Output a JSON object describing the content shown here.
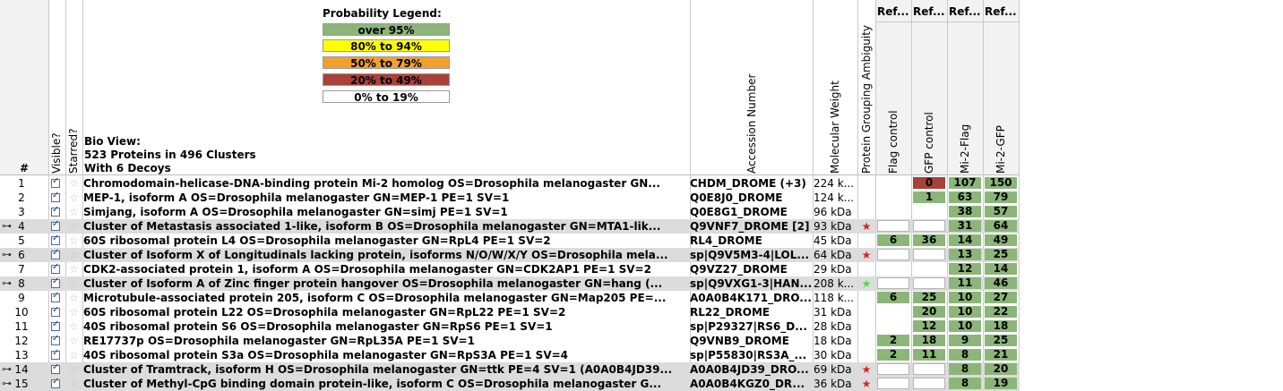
{
  "legend": {
    "title": "Probability Legend:",
    "items": [
      {
        "label": "over 95%",
        "color": "#8cb57a"
      },
      {
        "label": "80% to 94%",
        "color": "#ffff00"
      },
      {
        "label": "50% to 79%",
        "color": "#f0a030"
      },
      {
        "label": "20% to  49%",
        "color": "#a8413a"
      },
      {
        "label": "0% to 19%",
        "color": "#ffffff"
      }
    ]
  },
  "headers": {
    "num": "#",
    "visible": "Visible?",
    "starred": "Starred?",
    "bioview_1": "Bio View:",
    "bioview_2": "523 Proteins in 496 Clusters",
    "bioview_3": "With 6 Decoys",
    "accession": "Accession Number",
    "mw": "Molecular Weight",
    "pga": "Protein Grouping Ambiguity",
    "ref_top": [
      "Ref...",
      "Ref...",
      "Ref...",
      "Ref..."
    ],
    "samples": [
      "Flag control",
      "GFP control",
      "Mi-2-Flag",
      "Mi-2-GFP"
    ]
  },
  "rows": [
    {
      "num": "1",
      "cluster": false,
      "starred": false,
      "desc": "Chromodomain-helicase-DNA-binding protein Mi-2 homolog OS=Drosophila melanogaster GN...",
      "acc": "CHDM_DROME (+3)",
      "mw": "224 k...",
      "pga": "",
      "c": [
        [
          "",
          ""
        ],
        [
          "0",
          "r"
        ],
        [
          "107",
          "g"
        ],
        [
          "150",
          "g"
        ]
      ]
    },
    {
      "num": "2",
      "cluster": false,
      "starred": false,
      "desc": "MEP-1, isoform A OS=Drosophila melanogaster GN=MEP-1 PE=1 SV=1",
      "acc": "Q0E8J0_DROME",
      "mw": "124 k...",
      "pga": "",
      "c": [
        [
          "",
          ""
        ],
        [
          "1",
          "g"
        ],
        [
          "63",
          "g"
        ],
        [
          "79",
          "g"
        ]
      ]
    },
    {
      "num": "3",
      "cluster": false,
      "starred": false,
      "desc": "Simjang, isoform A OS=Drosophila melanogaster GN=simj PE=1 SV=1",
      "acc": "Q0E8G1_DROME",
      "mw": "96 kDa",
      "pga": "",
      "c": [
        [
          "",
          ""
        ],
        [
          "",
          ""
        ],
        [
          "38",
          "g"
        ],
        [
          "57",
          "g"
        ]
      ]
    },
    {
      "num": "4",
      "cluster": true,
      "starred": false,
      "desc": "Cluster of Metastasis associated 1-like, isoform B OS=Drosophila melanogaster GN=MTA1-lik...",
      "acc": "Q9VNF7_DROME [2]",
      "mw": "93 kDa",
      "pga": "red",
      "c": [
        [
          "",
          "e"
        ],
        [
          "",
          "e"
        ],
        [
          "31",
          "g"
        ],
        [
          "64",
          "g"
        ]
      ]
    },
    {
      "num": "5",
      "cluster": false,
      "starred": false,
      "desc": "60S ribosomal protein L4 OS=Drosophila melanogaster GN=RpL4 PE=1 SV=2",
      "acc": "RL4_DROME",
      "mw": "45 kDa",
      "pga": "",
      "c": [
        [
          "6",
          "g"
        ],
        [
          "36",
          "g"
        ],
        [
          "14",
          "g"
        ],
        [
          "49",
          "g"
        ]
      ]
    },
    {
      "num": "6",
      "cluster": true,
      "starred": false,
      "desc": "Cluster of Isoform X of Longitudinals lacking protein, isoforms N/O/W/X/Y OS=Drosophila mela...",
      "acc": "sp|Q9V5M3-4|LOL...",
      "mw": "64 kDa",
      "pga": "red",
      "c": [
        [
          "",
          "e"
        ],
        [
          "",
          "e"
        ],
        [
          "13",
          "g"
        ],
        [
          "25",
          "g"
        ]
      ]
    },
    {
      "num": "7",
      "cluster": false,
      "starred": false,
      "desc": "CDK2-associated protein 1, isoform A OS=Drosophila melanogaster GN=CDK2AP1 PE=1 SV=2",
      "acc": "Q9VZ27_DROME",
      "mw": "29 kDa",
      "pga": "",
      "c": [
        [
          "",
          ""
        ],
        [
          "",
          ""
        ],
        [
          "12",
          "g"
        ],
        [
          "14",
          "g"
        ]
      ]
    },
    {
      "num": "8",
      "cluster": true,
      "starred": false,
      "desc": "Cluster of Isoform A of Zinc finger protein hangover OS=Drosophila melanogaster GN=hang (...",
      "acc": "sp|Q9VXG1-3|HAN...",
      "mw": "208 k...",
      "pga": "green",
      "c": [
        [
          "",
          "e"
        ],
        [
          "",
          "e"
        ],
        [
          "11",
          "g"
        ],
        [
          "46",
          "g"
        ]
      ]
    },
    {
      "num": "9",
      "cluster": false,
      "starred": false,
      "desc": "Microtubule-associated protein 205, isoform C OS=Drosophila melanogaster GN=Map205 PE=...",
      "acc": "A0A0B4K171_DRO...",
      "mw": "118 k...",
      "pga": "",
      "c": [
        [
          "6",
          "g"
        ],
        [
          "25",
          "g"
        ],
        [
          "10",
          "g"
        ],
        [
          "27",
          "g"
        ]
      ]
    },
    {
      "num": "10",
      "cluster": false,
      "starred": false,
      "desc": "60S ribosomal protein L22 OS=Drosophila melanogaster GN=RpL22 PE=1 SV=2",
      "acc": "RL22_DROME",
      "mw": "31 kDa",
      "pga": "",
      "c": [
        [
          "",
          ""
        ],
        [
          "20",
          "g"
        ],
        [
          "10",
          "g"
        ],
        [
          "22",
          "g"
        ]
      ]
    },
    {
      "num": "11",
      "cluster": false,
      "starred": false,
      "desc": "40S ribosomal protein S6 OS=Drosophila melanogaster GN=RpS6 PE=1 SV=1",
      "acc": "sp|P29327|RS6_D...",
      "mw": "28 kDa",
      "pga": "",
      "c": [
        [
          "",
          ""
        ],
        [
          "12",
          "g"
        ],
        [
          "10",
          "g"
        ],
        [
          "18",
          "g"
        ]
      ]
    },
    {
      "num": "12",
      "cluster": false,
      "starred": false,
      "desc": "RE17737p OS=Drosophila melanogaster GN=RpL35A PE=1 SV=1",
      "acc": "Q9VNB9_DROME",
      "mw": "18 kDa",
      "pga": "",
      "c": [
        [
          "2",
          "g"
        ],
        [
          "18",
          "g"
        ],
        [
          "9",
          "g"
        ],
        [
          "25",
          "g"
        ]
      ]
    },
    {
      "num": "13",
      "cluster": false,
      "starred": false,
      "desc": "40S ribosomal protein S3a OS=Drosophila melanogaster GN=RpS3A PE=1 SV=4",
      "acc": "sp|P55830|RS3A_...",
      "mw": "30 kDa",
      "pga": "",
      "c": [
        [
          "2",
          "g"
        ],
        [
          "11",
          "g"
        ],
        [
          "8",
          "g"
        ],
        [
          "21",
          "g"
        ]
      ]
    },
    {
      "num": "14",
      "cluster": true,
      "starred": false,
      "desc": "Cluster of Tramtrack, isoform H OS=Drosophila melanogaster GN=ttk PE=4 SV=1 (A0A0B4JD39...",
      "acc": "A0A0B4JD39_DRO...",
      "mw": "69 kDa",
      "pga": "red",
      "c": [
        [
          "",
          "e"
        ],
        [
          "",
          "e"
        ],
        [
          "8",
          "g"
        ],
        [
          "20",
          "g"
        ]
      ]
    },
    {
      "num": "15",
      "cluster": true,
      "starred": false,
      "desc": "Cluster of Methyl-CpG binding domain protein-like, isoform C OS=Drosophila melanogaster G...",
      "acc": "A0A0B4KGZ0_DR...",
      "mw": "36 kDa",
      "pga": "red",
      "c": [
        [
          "",
          "e"
        ],
        [
          "",
          "e"
        ],
        [
          "8",
          "g"
        ],
        [
          "19",
          "g"
        ]
      ]
    }
  ]
}
